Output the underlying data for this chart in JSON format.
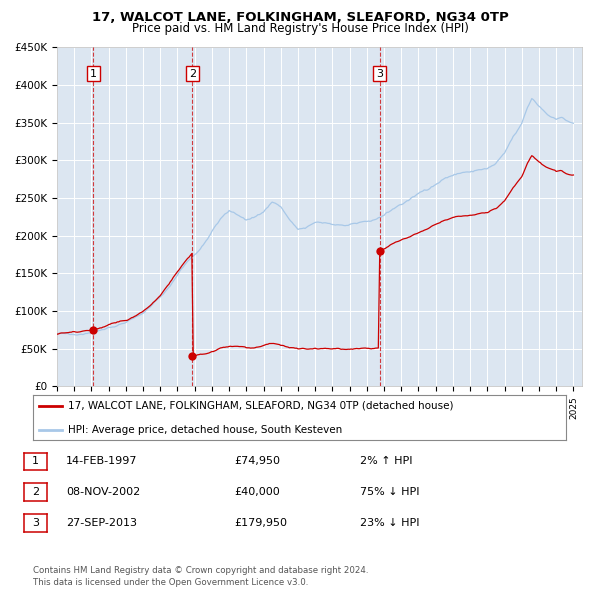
{
  "title": "17, WALCOT LANE, FOLKINGHAM, SLEAFORD, NG34 0TP",
  "subtitle": "Price paid vs. HM Land Registry's House Price Index (HPI)",
  "plot_bg_color": "#dce6f1",
  "hpi_color": "#a8c8e8",
  "price_color": "#cc0000",
  "grid_color": "#ffffff",
  "ylim": [
    0,
    450000
  ],
  "yticks": [
    0,
    50000,
    100000,
    150000,
    200000,
    250000,
    300000,
    350000,
    400000,
    450000
  ],
  "ytick_labels": [
    "£0",
    "£50K",
    "£100K",
    "£150K",
    "£200K",
    "£250K",
    "£300K",
    "£350K",
    "£400K",
    "£450K"
  ],
  "hpi_key_points": [
    [
      1995.0,
      68000
    ],
    [
      1995.5,
      69000
    ],
    [
      1996.0,
      70500
    ],
    [
      1996.5,
      71500
    ],
    [
      1997.0,
      72500
    ],
    [
      1997.5,
      75000
    ],
    [
      1998.0,
      79000
    ],
    [
      1998.5,
      82000
    ],
    [
      1999.0,
      86000
    ],
    [
      1999.5,
      91000
    ],
    [
      2000.0,
      97000
    ],
    [
      2000.5,
      107000
    ],
    [
      2001.0,
      118000
    ],
    [
      2001.5,
      132000
    ],
    [
      2002.0,
      148000
    ],
    [
      2002.5,
      164000
    ],
    [
      2003.0,
      176000
    ],
    [
      2003.5,
      188000
    ],
    [
      2004.0,
      205000
    ],
    [
      2004.5,
      222000
    ],
    [
      2005.0,
      232000
    ],
    [
      2005.5,
      228000
    ],
    [
      2006.0,
      222000
    ],
    [
      2006.5,
      225000
    ],
    [
      2007.0,
      232000
    ],
    [
      2007.5,
      245000
    ],
    [
      2008.0,
      238000
    ],
    [
      2008.5,
      220000
    ],
    [
      2009.0,
      208000
    ],
    [
      2009.5,
      210000
    ],
    [
      2010.0,
      216000
    ],
    [
      2010.5,
      218000
    ],
    [
      2011.0,
      216000
    ],
    [
      2011.5,
      214000
    ],
    [
      2012.0,
      213000
    ],
    [
      2012.5,
      214000
    ],
    [
      2013.0,
      218000
    ],
    [
      2013.5,
      222000
    ],
    [
      2014.0,
      228000
    ],
    [
      2014.5,
      235000
    ],
    [
      2015.0,
      242000
    ],
    [
      2015.5,
      248000
    ],
    [
      2016.0,
      255000
    ],
    [
      2016.5,
      262000
    ],
    [
      2017.0,
      270000
    ],
    [
      2017.5,
      276000
    ],
    [
      2018.0,
      280000
    ],
    [
      2018.5,
      283000
    ],
    [
      2019.0,
      285000
    ],
    [
      2019.5,
      287000
    ],
    [
      2020.0,
      288000
    ],
    [
      2020.5,
      295000
    ],
    [
      2021.0,
      308000
    ],
    [
      2021.5,
      330000
    ],
    [
      2022.0,
      348000
    ],
    [
      2022.3,
      368000
    ],
    [
      2022.6,
      382000
    ],
    [
      2022.9,
      375000
    ],
    [
      2023.2,
      368000
    ],
    [
      2023.5,
      362000
    ],
    [
      2023.8,
      358000
    ],
    [
      2024.0,
      355000
    ],
    [
      2024.3,
      358000
    ],
    [
      2024.6,
      352000
    ],
    [
      2025.0,
      350000
    ]
  ],
  "transactions": [
    {
      "num": 1,
      "date_num": 1997.12,
      "price": 74950,
      "label": "1"
    },
    {
      "num": 2,
      "date_num": 2002.86,
      "price": 40000,
      "label": "2"
    },
    {
      "num": 3,
      "date_num": 2013.74,
      "price": 179950,
      "label": "3"
    }
  ],
  "legend_price_label": "17, WALCOT LANE, FOLKINGHAM, SLEAFORD, NG34 0TP (detached house)",
  "legend_hpi_label": "HPI: Average price, detached house, South Kesteven",
  "table_rows": [
    {
      "num": "1",
      "date": "14-FEB-1997",
      "price": "£74,950",
      "change": "2% ↑ HPI"
    },
    {
      "num": "2",
      "date": "08-NOV-2002",
      "price": "£40,000",
      "change": "75% ↓ HPI"
    },
    {
      "num": "3",
      "date": "27-SEP-2013",
      "price": "£179,950",
      "change": "23% ↓ HPI"
    }
  ],
  "footer": "Contains HM Land Registry data © Crown copyright and database right 2024.\nThis data is licensed under the Open Government Licence v3.0."
}
